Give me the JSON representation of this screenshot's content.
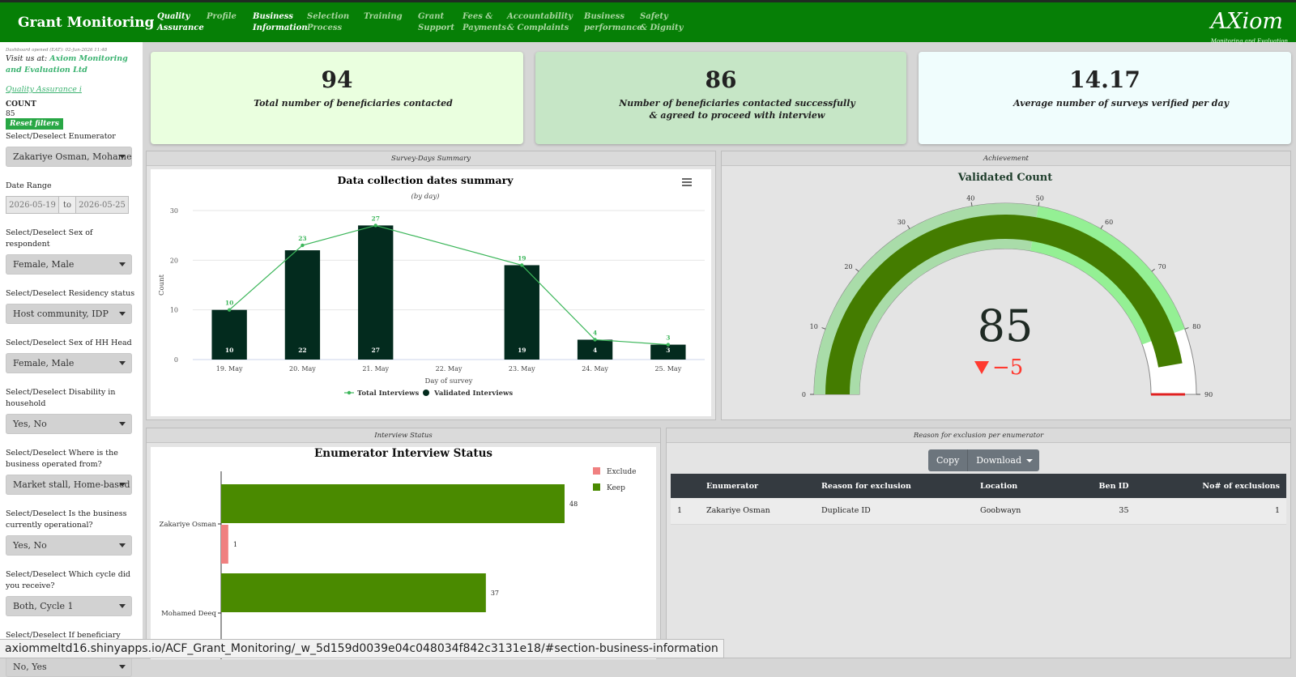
{
  "header": {
    "title": "Grant Monitoring",
    "nav": [
      {
        "lines": [
          "Quality",
          "Assurance"
        ],
        "active": true
      },
      {
        "lines": [
          "Profile"
        ]
      },
      {
        "lines": [
          "Business",
          "Information"
        ],
        "active": true
      },
      {
        "lines": [
          "Selection",
          "Process"
        ]
      },
      {
        "lines": [
          "Training"
        ]
      },
      {
        "lines": [
          "Grant",
          "Support"
        ]
      },
      {
        "lines": [
          "Fees &",
          "Payments"
        ]
      },
      {
        "lines": [
          "Accountability",
          "& Complaints"
        ]
      },
      {
        "lines": [
          "Business",
          "performance"
        ]
      },
      {
        "lines": [
          "Safety",
          "& Dignity"
        ]
      }
    ],
    "logo": "AXiom",
    "logo_sub": "Monitoring and Evaluation"
  },
  "sidebar": {
    "opened": "Dashboard opened (EAT): 02-Jun-2026 11:48",
    "visit": "Visit us at:",
    "visit_link": "Axiom Monitoring and Evaluation Ltd",
    "qa_link": "Quality Assurance i",
    "count_label": "COUNT",
    "count": 85,
    "reset": "Reset filters",
    "filters": [
      {
        "label": "Select/Deselect Enumerator",
        "value": "Zakariye Osman, Mohamed Deeq"
      },
      {
        "label": "Date Range",
        "start": "2026-05-19",
        "sep": "to",
        "end": "2026-05-25"
      },
      {
        "label": "Select/Deselect Sex of respondent",
        "value": "Female, Male"
      },
      {
        "label": "Select/Deselect Residency status",
        "value": "Host community, IDP"
      },
      {
        "label": "Select/Deselect Sex of HH Head",
        "value": "Female, Male"
      },
      {
        "label": "Select/Deselect Disability in household",
        "value": "Yes, No"
      },
      {
        "label": "Select/Deselect Where is the business operated from?",
        "value": "Market stall, Home-based"
      },
      {
        "label": "Select/Deselect Is the business currently operational?",
        "value": "Yes, No"
      },
      {
        "label": "Select/Deselect Which cycle did you receive?",
        "value": "Both, Cycle 1"
      },
      {
        "label": "Select/Deselect If beneficiary was asked to pay any fee?",
        "value": "No, Yes"
      }
    ]
  },
  "kpis": [
    {
      "value": 94,
      "label": "Total number of beneficiaries contacted",
      "color": "#eaffdf",
      "icon": "calendar"
    },
    {
      "value": 86,
      "label": "Number of beneficiaries contacted successfully & agreed to proceed with interview",
      "color": "#c6e6c6",
      "icon": "calendar"
    },
    {
      "value": 14.17,
      "label": "Average number of surveys verified per day",
      "color": "#f0fdfd",
      "icon": "tag"
    }
  ],
  "panels": {
    "survey_days": "Survey-Days Summary",
    "achievement": "Achievement",
    "interview_status": "Interview Status",
    "exclusion": "Reason for exclusion per enumerator"
  },
  "chart_data": [
    {
      "type": "bar",
      "title": "Data collection dates summary",
      "subtitle": "(by day)",
      "x_label": "Day of survey",
      "y_label": "Count",
      "categories": [
        "19. May",
        "20. May",
        "21. May",
        "22. May",
        "23. May",
        "24. May",
        "25. May"
      ],
      "series": [
        {
          "name": "Total Interviews",
          "type": "line",
          "color": "#3cb65a",
          "values": [
            10,
            23,
            27,
            null,
            19,
            4,
            3
          ]
        },
        {
          "name": "Validated Interviews",
          "type": "bar",
          "color": "#032b1e",
          "values": [
            10,
            22,
            27,
            null,
            19,
            4,
            3
          ]
        }
      ],
      "connect_nulls": true,
      "ylim": [
        0,
        30
      ],
      "yticks": [
        0,
        10,
        20,
        30
      ],
      "grid": true,
      "legend": "bottom"
    },
    {
      "type": "gauge",
      "title": "Validated Count",
      "value": 85,
      "delta": {
        "value": -5,
        "label": "−5"
      },
      "range": [
        0,
        90
      ],
      "ticks": [
        0,
        10,
        20,
        30,
        40,
        50,
        60,
        70,
        80,
        90
      ],
      "bar_color": "#447c00",
      "steps": [
        {
          "range": [
            0,
            50
          ],
          "color": "#a9dca9"
        },
        {
          "range": [
            50,
            80
          ],
          "color": "#94f094"
        }
      ],
      "threshold": {
        "value": 90,
        "color": "#e02020"
      }
    },
    {
      "type": "hbar",
      "title": "Enumerator Interview Status",
      "categories": [
        "Zakariye Osman",
        "Mohamed Deeq"
      ],
      "series": [
        {
          "name": "Exclude",
          "color": "#f08080",
          "values": [
            1,
            null
          ]
        },
        {
          "name": "Keep",
          "color": "#4a8a00",
          "values": [
            48,
            37
          ]
        }
      ],
      "xlim": [
        0,
        60
      ],
      "legend": "top-right"
    }
  ],
  "table": {
    "buttons": [
      "Copy",
      "Download"
    ],
    "columns": [
      "Enumerator",
      "Reason for exclusion",
      "Location",
      "Ben ID",
      "No# of exclusions"
    ],
    "rows": [
      [
        1,
        "Zakariye Osman",
        "Duplicate ID",
        "Goobwayn",
        35,
        1
      ]
    ]
  },
  "status_url": "axiommeltd16.shinyapps.io/ACF_Grant_Monitoring/_w_5d159d0039e04c048034f842c3131e18/#section-business-information"
}
